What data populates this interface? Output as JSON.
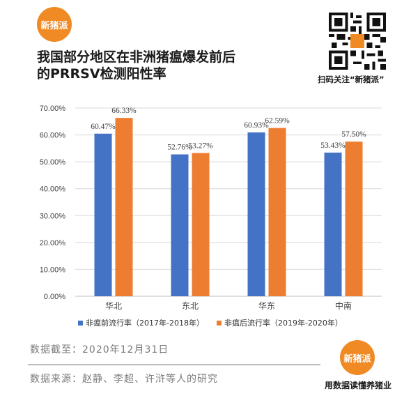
{
  "brand": {
    "logo_text": "新猪派",
    "badge_text": "新猪派",
    "slogan": "用数据读懂养猪业",
    "accent": "#f08a24"
  },
  "header": {
    "title_line1": "我国部分地区在非洲猪瘟爆发前后",
    "title_line2": "的PRRSV检测阳性率"
  },
  "qr": {
    "caption": "扫码关注“新猪派”"
  },
  "footer": {
    "date_note": "数据截至：2020年12月31日",
    "source_note": "数据来源：赵静、李超、许浒等人的研究"
  },
  "chart_data": {
    "type": "bar",
    "categories": [
      "华北",
      "东北",
      "华东",
      "中南"
    ],
    "series": [
      {
        "name": "非瘟前流行率（2017年-2018年）",
        "color": "#4472c4",
        "values": [
          60.47,
          52.76,
          60.93,
          53.43
        ],
        "labels": [
          "60.47%",
          "52.76%",
          "60.93%",
          "53.43%"
        ]
      },
      {
        "name": "非瘟后流行率（2019年-2020年）",
        "color": "#ed7d31",
        "values": [
          66.33,
          53.27,
          62.59,
          57.5
        ],
        "labels": [
          "66.33%",
          "53.27%",
          "62.59%",
          "57.50%"
        ]
      }
    ],
    "yticks": [
      "0.00%",
      "10.00%",
      "20.00%",
      "30.00%",
      "40.00%",
      "50.00%",
      "60.00%",
      "70.00%"
    ],
    "ylim": [
      0,
      70
    ],
    "grid": true,
    "legend": "bottom"
  }
}
